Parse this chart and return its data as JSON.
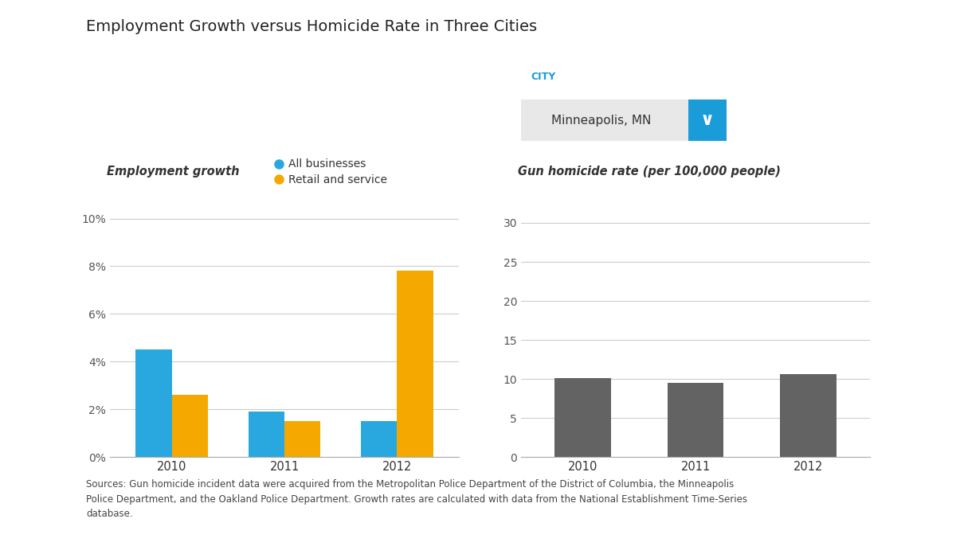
{
  "title": "Employment Growth versus Homicide Rate in Three Cities",
  "bg_color": "#ffffff",
  "city_label": "CITY",
  "city_value": "Minneapolis, MN",
  "city_label_color": "#1a9cd8",
  "dropdown_color": "#1a9cd8",
  "left_chart": {
    "ylabel": "Employment growth",
    "years": [
      "2010",
      "2011",
      "2012"
    ],
    "all_businesses": [
      4.5,
      1.9,
      1.5
    ],
    "retail_service": [
      2.6,
      1.5,
      7.8
    ],
    "all_color": "#29a8e0",
    "retail_color": "#f5a800",
    "yticks": [
      0,
      2,
      4,
      6,
      8,
      10
    ],
    "ylim": [
      0,
      10.8
    ],
    "ytick_labels": [
      "0%",
      "2%",
      "4%",
      "6%",
      "8%",
      "10%"
    ],
    "legend_all": "All businesses",
    "legend_retail": "Retail and service",
    "bar_width": 0.32
  },
  "right_chart": {
    "ylabel": "Gun homicide rate (per 100,000 people)",
    "years": [
      "2010",
      "2011",
      "2012"
    ],
    "values": [
      10.1,
      9.5,
      10.6
    ],
    "bar_color": "#636363",
    "yticks": [
      0,
      5,
      10,
      15,
      20,
      25,
      30
    ],
    "ylim": [
      0,
      33
    ],
    "ytick_labels": [
      "0",
      "5",
      "10",
      "15",
      "20",
      "25",
      "30"
    ],
    "bar_width": 0.5
  },
  "source_text": "Sources: Gun homicide incident data were acquired from the Metropolitan Police Department of the District of Columbia, the Minneapolis\nPolice Department, and the Oakland Police Department. Growth rates are calculated with data from the National Establishment Time-Series\ndatabase.",
  "source_fontsize": 8.5,
  "grid_color": "#cccccc",
  "tick_color": "#555555",
  "label_color": "#333333"
}
